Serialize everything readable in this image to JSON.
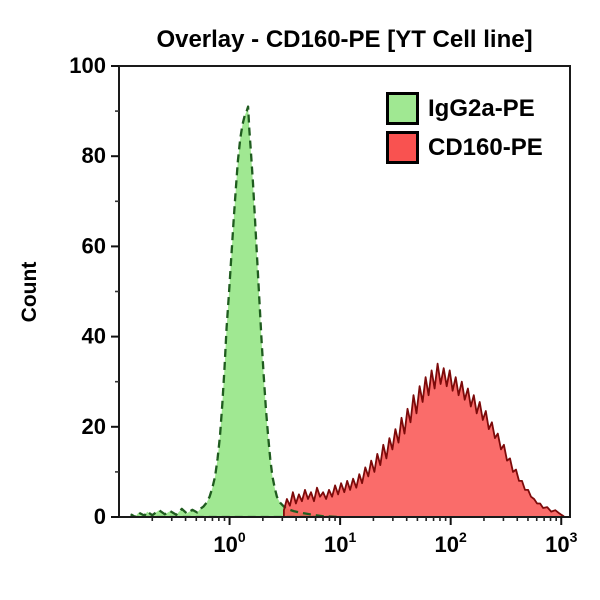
{
  "figure": {
    "title": "Overlay - CD160-PE [YT Cell line]",
    "y_axis_label": "Count"
  },
  "legend": {
    "items": [
      {
        "label": "IgG2a-PE",
        "fill": "#a0e892",
        "edge": "#000000"
      },
      {
        "label": "CD160-PE",
        "fill": "#f95250",
        "edge": "#000000"
      }
    ]
  },
  "chart_data": {
    "type": "area",
    "subtype": "flow-cytometry-histogram-overlay",
    "title": "Overlay - CD160-PE [YT Cell line]",
    "xlabel": "",
    "ylabel": "Count",
    "x_scale": "log10",
    "xlim": [
      0.1,
      1200
    ],
    "ylim": [
      0,
      100
    ],
    "grid": false,
    "legend_position": "top-right",
    "x_major_ticks": [
      {
        "base": "10",
        "exp": "0",
        "value": 1
      },
      {
        "base": "10",
        "exp": "1",
        "value": 10
      },
      {
        "base": "10",
        "exp": "2",
        "value": 100
      },
      {
        "base": "10",
        "exp": "3",
        "value": 1000
      }
    ],
    "y_ticks": [
      0,
      20,
      40,
      60,
      80,
      100
    ],
    "y_minor_ticks": [
      10,
      30,
      50,
      70,
      90
    ],
    "series": [
      {
        "name": "IgG2a-PE",
        "fill": "#a0e892",
        "line": "#1f5c1f",
        "line_style": "dashed",
        "peak": {
          "x": 1.5,
          "count": 91
        },
        "points": [
          [
            0.13,
            0.5
          ],
          [
            0.14,
            0
          ],
          [
            0.15,
            1
          ],
          [
            0.17,
            0.3
          ],
          [
            0.18,
            1.2
          ],
          [
            0.2,
            0.4
          ],
          [
            0.23,
            1.5
          ],
          [
            0.26,
            0.6
          ],
          [
            0.29,
            1.3
          ],
          [
            0.33,
            0.5
          ],
          [
            0.37,
            1.8
          ],
          [
            0.41,
            0.8
          ],
          [
            0.46,
            1.6
          ],
          [
            0.51,
            1.0
          ],
          [
            0.55,
            1.9
          ],
          [
            0.58,
            2.3
          ],
          [
            0.62,
            3.2
          ],
          [
            0.66,
            4.5
          ],
          [
            0.7,
            6.5
          ],
          [
            0.74,
            9
          ],
          [
            0.78,
            13
          ],
          [
            0.82,
            18
          ],
          [
            0.86,
            25
          ],
          [
            0.9,
            33
          ],
          [
            0.94,
            42
          ],
          [
            0.99,
            50
          ],
          [
            1.04,
            58
          ],
          [
            1.09,
            66
          ],
          [
            1.14,
            73
          ],
          [
            1.19,
            79
          ],
          [
            1.25,
            84
          ],
          [
            1.31,
            87
          ],
          [
            1.37,
            89
          ],
          [
            1.43,
            90
          ],
          [
            1.47,
            91
          ],
          [
            1.51,
            86
          ],
          [
            1.56,
            81
          ],
          [
            1.63,
            74
          ],
          [
            1.7,
            66
          ],
          [
            1.78,
            57
          ],
          [
            1.86,
            48
          ],
          [
            1.95,
            39
          ],
          [
            2.04,
            31
          ],
          [
            2.13,
            24
          ],
          [
            2.23,
            18
          ],
          [
            2.33,
            13
          ],
          [
            2.44,
            9
          ],
          [
            2.56,
            6.5
          ],
          [
            2.68,
            4.5
          ],
          [
            2.86,
            3.2
          ],
          [
            3.1,
            2.3
          ],
          [
            3.4,
            1.7
          ],
          [
            3.8,
            1.3
          ],
          [
            4.3,
            1.0
          ],
          [
            5.0,
            0.7
          ],
          [
            5.9,
            0.4
          ],
          [
            6.9,
            0.2
          ],
          [
            8.1,
            0.1
          ],
          [
            9.5,
            0
          ]
        ]
      },
      {
        "name": "CD160-PE",
        "fill": "#f95250",
        "line": "#7d0a0a",
        "line_style": "solid",
        "peak": {
          "x": 76,
          "count": 34
        },
        "points": [
          [
            3.1,
            1.5
          ],
          [
            3.3,
            4
          ],
          [
            3.51,
            2.5
          ],
          [
            3.74,
            5.5
          ],
          [
            3.98,
            3
          ],
          [
            4.24,
            5
          ],
          [
            4.51,
            3.5
          ],
          [
            4.81,
            6
          ],
          [
            5.12,
            4
          ],
          [
            5.45,
            5.5
          ],
          [
            5.8,
            3.5
          ],
          [
            6.18,
            6.5
          ],
          [
            6.58,
            4.5
          ],
          [
            7.01,
            5.5
          ],
          [
            7.46,
            4
          ],
          [
            7.94,
            6
          ],
          [
            8.46,
            4.5
          ],
          [
            9.01,
            7
          ],
          [
            9.59,
            5
          ],
          [
            10.2,
            7.5
          ],
          [
            10.9,
            5.5
          ],
          [
            11.6,
            8
          ],
          [
            12.3,
            6
          ],
          [
            13.1,
            8.5
          ],
          [
            14.0,
            6.5
          ],
          [
            14.9,
            9.5
          ],
          [
            15.8,
            7.5
          ],
          [
            16.9,
            11
          ],
          [
            18.0,
            9
          ],
          [
            19.1,
            12.5
          ],
          [
            20.4,
            10
          ],
          [
            21.7,
            14
          ],
          [
            23.1,
            11.5
          ],
          [
            24.6,
            16
          ],
          [
            26.2,
            13
          ],
          [
            27.9,
            17.5
          ],
          [
            29.7,
            15
          ],
          [
            31.6,
            19.5
          ],
          [
            33.7,
            16.5
          ],
          [
            35.9,
            22
          ],
          [
            38.2,
            18.5
          ],
          [
            40.7,
            24
          ],
          [
            43.3,
            21
          ],
          [
            46.1,
            27
          ],
          [
            49.1,
            23
          ],
          [
            52.3,
            29
          ],
          [
            55.7,
            25.5
          ],
          [
            59.3,
            31
          ],
          [
            63.1,
            27
          ],
          [
            67.2,
            32.5
          ],
          [
            71.5,
            28.5
          ],
          [
            76.2,
            34
          ],
          [
            81.1,
            29.5
          ],
          [
            86.4,
            33
          ],
          [
            92.0,
            29
          ],
          [
            97.9,
            32.5
          ],
          [
            104,
            28
          ],
          [
            111,
            31
          ],
          [
            118,
            27
          ],
          [
            126,
            30
          ],
          [
            134,
            26
          ],
          [
            143,
            28.5
          ],
          [
            152,
            24.5
          ],
          [
            162,
            27
          ],
          [
            172,
            23
          ],
          [
            183,
            25.5
          ],
          [
            195,
            21.5
          ],
          [
            208,
            23.5
          ],
          [
            221,
            19.5
          ],
          [
            236,
            21
          ],
          [
            251,
            17.5
          ],
          [
            267,
            18.5
          ],
          [
            285,
            15
          ],
          [
            303,
            16
          ],
          [
            323,
            12.5
          ],
          [
            344,
            13
          ],
          [
            366,
            10
          ],
          [
            390,
            10.5
          ],
          [
            415,
            8
          ],
          [
            442,
            8
          ],
          [
            470,
            6
          ],
          [
            501,
            6
          ],
          [
            533,
            4.5
          ],
          [
            568,
            4
          ],
          [
            605,
            3
          ],
          [
            644,
            3
          ],
          [
            685,
            2
          ],
          [
            746,
            2.2
          ],
          [
            812,
            1.2
          ],
          [
            884,
            1.5
          ],
          [
            962,
            0.8
          ],
          [
            1000,
            0.5
          ],
          [
            1050,
            0.2
          ]
        ]
      }
    ]
  }
}
